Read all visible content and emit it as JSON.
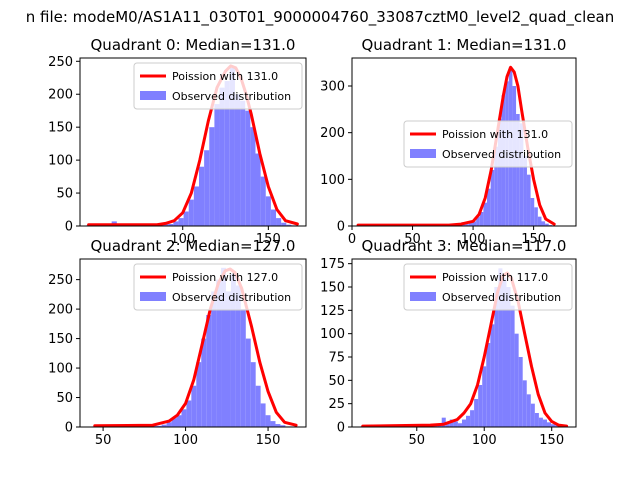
{
  "suptitle": "n file: modeM0/AS1A11_030T01_9000004760_33087cztM0_level2_quad_clean",
  "colors": {
    "bars": "#8080ff",
    "curve": "#ff0000"
  },
  "chart_data": [
    {
      "type": "bar",
      "title": "Quadrant 0: Median=131.0",
      "legend_location": "upper right",
      "legend": {
        "line": "Poission with 131.0",
        "bars": "Observed distribution"
      },
      "xlim": [
        40,
        172
      ],
      "ylim": [
        0,
        255
      ],
      "xticks": [
        100,
        150
      ],
      "yticks": [
        0,
        50,
        100,
        150,
        200,
        250
      ],
      "bin_width": 3,
      "hist": {
        "x": [
          45,
          48,
          51,
          54,
          57,
          60,
          63,
          66,
          69,
          72,
          75,
          78,
          81,
          84,
          87,
          90,
          93,
          96,
          99,
          102,
          105,
          108,
          111,
          114,
          117,
          120,
          123,
          126,
          129,
          132,
          135,
          138,
          141,
          144,
          147,
          150,
          153,
          156,
          159,
          162,
          165
        ],
        "y": [
          1,
          1,
          1,
          1,
          1,
          7,
          2,
          1,
          1,
          2,
          1,
          1,
          1,
          2,
          3,
          4,
          3,
          7,
          12,
          22,
          40,
          60,
          90,
          115,
          150,
          185,
          210,
          220,
          240,
          200,
          190,
          175,
          150,
          110,
          75,
          45,
          25,
          12,
          5,
          2,
          1
        ]
      },
      "curve": {
        "x": [
          45,
          85,
          90,
          95,
          100,
          105,
          110,
          115,
          120,
          125,
          128,
          131,
          134,
          137,
          140,
          145,
          150,
          155,
          160,
          167
        ],
        "y": [
          2,
          2,
          4,
          8,
          20,
          50,
          100,
          160,
          210,
          235,
          243,
          240,
          225,
          200,
          170,
          110,
          60,
          25,
          8,
          3
        ]
      }
    },
    {
      "type": "bar",
      "title": "Quadrant 1: Median=131.0",
      "legend_location": "center right",
      "legend": {
        "line": "Poission with 131.0",
        "bars": "Observed distribution"
      },
      "xlim": [
        0,
        185
      ],
      "ylim": [
        0,
        360
      ],
      "xticks": [
        0,
        50,
        100,
        150
      ],
      "yticks": [
        0,
        100,
        200,
        300
      ],
      "bin_width": 3,
      "hist": {
        "x": [
          5,
          8,
          11,
          14,
          17,
          20,
          23,
          26,
          29,
          32,
          35,
          38,
          41,
          44,
          47,
          50,
          53,
          56,
          59,
          62,
          65,
          68,
          71,
          74,
          77,
          80,
          83,
          86,
          89,
          92,
          95,
          98,
          101,
          104,
          107,
          110,
          113,
          116,
          119,
          122,
          125,
          128,
          131,
          134,
          137,
          140,
          143,
          146,
          149,
          152,
          155,
          158,
          161,
          164,
          167
        ],
        "y": [
          1,
          1,
          1,
          1,
          1,
          1,
          1,
          1,
          1,
          1,
          1,
          1,
          1,
          1,
          1,
          1,
          1,
          1,
          1,
          1,
          1,
          1,
          1,
          1,
          1,
          1,
          3,
          3,
          1,
          8,
          4,
          7,
          10,
          20,
          30,
          50,
          80,
          120,
          170,
          230,
          280,
          310,
          340,
          300,
          240,
          220,
          150,
          110,
          60,
          40,
          20,
          10,
          5,
          2,
          1
        ]
      },
      "curve": {
        "x": [
          5,
          80,
          90,
          100,
          105,
          110,
          115,
          120,
          125,
          128,
          131,
          134,
          137,
          140,
          145,
          150,
          155,
          160,
          167
        ],
        "y": [
          2,
          2,
          4,
          10,
          25,
          60,
          120,
          200,
          280,
          320,
          340,
          330,
          300,
          250,
          170,
          100,
          45,
          15,
          4
        ]
      }
    },
    {
      "type": "bar",
      "title": "Quadrant 2: Median=127.0",
      "legend_location": "upper right",
      "legend": {
        "line": "Poission with 127.0",
        "bars": "Observed distribution"
      },
      "xlim": [
        36,
        173
      ],
      "ylim": [
        0,
        285
      ],
      "xticks": [
        50,
        100,
        150
      ],
      "yticks": [
        0,
        50,
        100,
        150,
        200,
        250
      ],
      "bin_width": 3,
      "hist": {
        "x": [
          45,
          48,
          51,
          54,
          57,
          60,
          63,
          66,
          69,
          72,
          75,
          78,
          81,
          84,
          87,
          90,
          93,
          96,
          99,
          102,
          105,
          108,
          111,
          114,
          117,
          120,
          123,
          126,
          129,
          132,
          135,
          138,
          141,
          144,
          147,
          150,
          153,
          156,
          159,
          162,
          165
        ],
        "y": [
          1,
          1,
          1,
          2,
          1,
          1,
          1,
          1,
          1,
          1,
          2,
          3,
          5,
          2,
          4,
          8,
          15,
          20,
          30,
          45,
          70,
          110,
          150,
          190,
          230,
          250,
          270,
          230,
          260,
          240,
          200,
          150,
          110,
          70,
          40,
          20,
          10,
          5,
          3,
          1,
          1
        ]
      },
      "curve": {
        "x": [
          45,
          80,
          90,
          95,
          100,
          105,
          110,
          115,
          120,
          124,
          127,
          130,
          134,
          140,
          145,
          150,
          155,
          160,
          167
        ],
        "y": [
          2,
          3,
          10,
          20,
          40,
          80,
          140,
          200,
          245,
          265,
          268,
          262,
          235,
          170,
          110,
          60,
          25,
          8,
          3
        ]
      }
    },
    {
      "type": "bar",
      "title": "Quadrant 3: Median=117.0",
      "legend_location": "upper right",
      "legend": {
        "line": "Poission with 117.0",
        "bars": "Observed distribution"
      },
      "xlim": [
        2,
        168
      ],
      "ylim": [
        0,
        180
      ],
      "xticks": [
        50,
        100,
        150
      ],
      "yticks": [
        0,
        25,
        50,
        75,
        100,
        125,
        150,
        175
      ],
      "bin_width": 3,
      "hist": {
        "x": [
          10,
          13,
          16,
          19,
          22,
          25,
          28,
          31,
          34,
          37,
          40,
          43,
          46,
          49,
          52,
          55,
          58,
          61,
          64,
          67,
          70,
          73,
          76,
          79,
          82,
          85,
          88,
          91,
          94,
          97,
          100,
          103,
          106,
          109,
          112,
          115,
          118,
          121,
          124,
          127,
          130,
          133,
          136,
          139,
          142,
          145,
          148,
          151,
          154,
          157,
          160
        ],
        "y": [
          1,
          1,
          1,
          1,
          1,
          1,
          1,
          1,
          1,
          1,
          1,
          1,
          1,
          1,
          1,
          1,
          1,
          2,
          1,
          3,
          10,
          5,
          8,
          6,
          4,
          8,
          12,
          18,
          30,
          45,
          65,
          90,
          110,
          150,
          170,
          160,
          150,
          130,
          100,
          75,
          50,
          35,
          25,
          15,
          10,
          8,
          5,
          3,
          2,
          1,
          1
        ]
      },
      "curve": {
        "x": [
          10,
          60,
          70,
          80,
          85,
          90,
          95,
          100,
          105,
          110,
          114,
          117,
          120,
          125,
          130,
          135,
          140,
          145,
          150,
          155,
          161
        ],
        "y": [
          1,
          2,
          3,
          8,
          15,
          25,
          45,
          75,
          110,
          145,
          162,
          165,
          160,
          135,
          100,
          65,
          35,
          15,
          6,
          2,
          1
        ]
      }
    }
  ]
}
